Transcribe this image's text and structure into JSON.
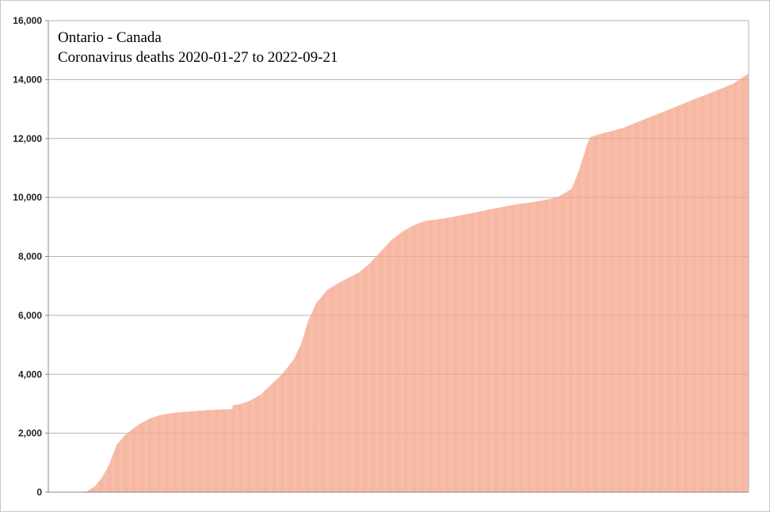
{
  "chart_data": {
    "type": "bar",
    "title_lines": [
      "Ontario - Canada",
      "Coronavirus deaths 2020-01-27 to 2022-09-21"
    ],
    "xlabel": "",
    "ylabel": "",
    "x_range": [
      "2020-01-27",
      "2022-09-21"
    ],
    "ylim": [
      0,
      16000
    ],
    "yticks": [
      "0",
      "2,000",
      "4,000",
      "6,000",
      "8,000",
      "10,000",
      "12,000",
      "14,000",
      "16,000"
    ],
    "ytick_values": [
      0,
      2000,
      4000,
      6000,
      8000,
      10000,
      12000,
      14000,
      16000
    ],
    "grid": true,
    "bar_color": "#f4a58a",
    "series": [
      {
        "points": [
          [
            "2020-01-27",
            0
          ],
          [
            "2020-03-10",
            0
          ],
          [
            "2020-03-20",
            30
          ],
          [
            "2020-03-31",
            200
          ],
          [
            "2020-04-10",
            500
          ],
          [
            "2020-04-20",
            950
          ],
          [
            "2020-04-30",
            1600
          ],
          [
            "2020-05-10",
            1900
          ],
          [
            "2020-05-20",
            2100
          ],
          [
            "2020-05-31",
            2300
          ],
          [
            "2020-06-15",
            2500
          ],
          [
            "2020-06-30",
            2620
          ],
          [
            "2020-07-15",
            2680
          ],
          [
            "2020-07-31",
            2720
          ],
          [
            "2020-08-15",
            2750
          ],
          [
            "2020-08-31",
            2780
          ],
          [
            "2020-09-15",
            2800
          ],
          [
            "2020-09-30",
            2815
          ],
          [
            "2020-10-07",
            2820
          ],
          [
            "2020-10-08",
            2950
          ],
          [
            "2020-10-20",
            3000
          ],
          [
            "2020-10-31",
            3100
          ],
          [
            "2020-11-15",
            3300
          ],
          [
            "2020-11-30",
            3650
          ],
          [
            "2020-12-15",
            4000
          ],
          [
            "2020-12-31",
            4500
          ],
          [
            "2021-01-10",
            5000
          ],
          [
            "2021-01-20",
            5800
          ],
          [
            "2021-01-31",
            6400
          ],
          [
            "2021-02-15",
            6850
          ],
          [
            "2021-02-28",
            7050
          ],
          [
            "2021-03-15",
            7250
          ],
          [
            "2021-03-31",
            7450
          ],
          [
            "2021-04-15",
            7750
          ],
          [
            "2021-04-30",
            8150
          ],
          [
            "2021-05-15",
            8550
          ],
          [
            "2021-05-31",
            8850
          ],
          [
            "2021-06-15",
            9050
          ],
          [
            "2021-06-30",
            9200
          ],
          [
            "2021-07-31",
            9300
          ],
          [
            "2021-08-31",
            9450
          ],
          [
            "2021-09-30",
            9600
          ],
          [
            "2021-10-31",
            9750
          ],
          [
            "2021-11-30",
            9850
          ],
          [
            "2021-12-31",
            10000
          ],
          [
            "2022-01-10",
            10150
          ],
          [
            "2022-01-20",
            10300
          ],
          [
            "2022-01-31",
            11000
          ],
          [
            "2022-02-10",
            11800
          ],
          [
            "2022-02-15",
            12050
          ],
          [
            "2022-02-28",
            12150
          ],
          [
            "2022-03-31",
            12350
          ],
          [
            "2022-04-30",
            12650
          ],
          [
            "2022-05-31",
            12950
          ],
          [
            "2022-06-30",
            13250
          ],
          [
            "2022-07-31",
            13550
          ],
          [
            "2022-08-31",
            13850
          ],
          [
            "2022-09-21",
            14200
          ]
        ]
      }
    ]
  }
}
